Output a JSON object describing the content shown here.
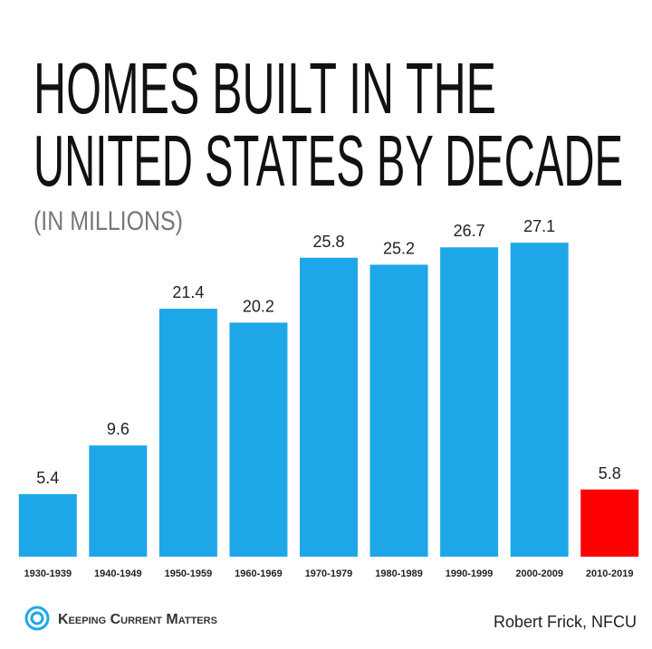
{
  "chart_data": {
    "type": "bar",
    "title_lines": [
      "HOMES BUILT IN THE",
      "UNITED STATES BY DECADE"
    ],
    "subtitle": "(IN MILLIONS)",
    "categories": [
      "1930-1939",
      "1940-1949",
      "1950-1959",
      "1960-1969",
      "1970-1979",
      "1980-1989",
      "1990-1999",
      "2000-2009",
      "2010-2019"
    ],
    "values": [
      5.4,
      9.6,
      21.4,
      20.2,
      25.8,
      25.2,
      26.7,
      27.1,
      5.8
    ],
    "colors": [
      "#1ea7e8",
      "#1ea7e8",
      "#1ea7e8",
      "#1ea7e8",
      "#1ea7e8",
      "#1ea7e8",
      "#1ea7e8",
      "#1ea7e8",
      "#ff0000"
    ],
    "ylim": [
      0,
      30
    ],
    "logo_text": "Keeping Current Matters",
    "source": "Robert Frick, NFCU"
  }
}
